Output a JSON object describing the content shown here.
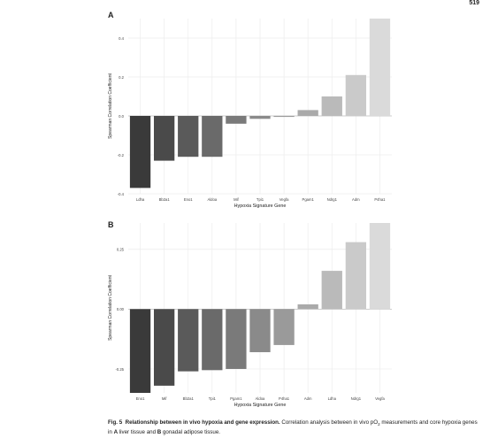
{
  "page_number": "519",
  "colors": {
    "panel_bg": "#ffffff",
    "grid": "#ececec",
    "zero_line": "#bdbdbd",
    "bar_gradient": [
      "#3a3a3a",
      "#dadada"
    ]
  },
  "caption": {
    "fig_label": "Fig. 5",
    "title": "Relationship between in vivo hypoxia and gene expression.",
    "text_1": "Correlation analysis between in vivo pO",
    "subscript": "2",
    "text_2": "measurements and core hypoxia genes in",
    "tissue_a_letter": "A",
    "tissue_a": "liver tissue and",
    "tissue_b_letter": "B",
    "tissue_b": "gonadal adipose tissue."
  },
  "chart_data": [
    {
      "type": "bar",
      "panel": "A",
      "xlabel": "Hypoxia Signature Gene",
      "ylabel": "Spearman Correlation Coefficient",
      "ylim": [
        -0.4,
        0.5
      ],
      "yticks": [
        -0.4,
        -0.2,
        0.0,
        0.2,
        0.4
      ],
      "ytick_labels": [
        "-0.4",
        "-0.2",
        "0.0",
        "0.2",
        "0.4"
      ],
      "categories": [
        "Ldha",
        "Bhlhe41",
        "Eno1",
        "Aldoa",
        "Mif",
        "Tpi1",
        "Vegfa",
        "Pgam1",
        "Ndrg1",
        "Adm",
        "P4ha1"
      ],
      "tick_labels": [
        "Ldha",
        "Bb2a1",
        "Eno1",
        "Aldoa",
        "Mif",
        "Tpi1",
        "Vegfa",
        "Pgam1",
        "Ndrg1",
        "Adm",
        "P4ha1"
      ],
      "values": [
        -0.37,
        -0.23,
        -0.21,
        -0.21,
        -0.04,
        -0.015,
        -0.005,
        0.03,
        0.1,
        0.21,
        0.5
      ],
      "grid": true,
      "legend": "none"
    },
    {
      "type": "bar",
      "panel": "B",
      "xlabel": "Hypoxia Signature Gene",
      "ylabel": "Spearman Correlation Coefficient",
      "ylim": [
        -0.35,
        0.36
      ],
      "yticks": [
        -0.25,
        0.0,
        0.25
      ],
      "ytick_labels": [
        "-0.25",
        "0.00",
        "0.25"
      ],
      "categories": [
        "Eno1",
        "Mif",
        "Bhlhe41",
        "Tpi1",
        "Pgam1",
        "Aldoa",
        "P4ha1",
        "Adm",
        "Ldha",
        "Ndrg1",
        "Vegfa"
      ],
      "tick_labels": [
        "Eno1",
        "Mif",
        "Bb2a1",
        "Tpi1",
        "Pgam1",
        "Aldoa",
        "P4ha1",
        "Adm",
        "Ldha",
        "Ndrg1",
        "Vegfa"
      ],
      "values": [
        -0.35,
        -0.32,
        -0.26,
        -0.255,
        -0.25,
        -0.18,
        -0.15,
        0.02,
        0.16,
        0.28,
        0.36
      ],
      "grid": true,
      "legend": "none"
    }
  ]
}
